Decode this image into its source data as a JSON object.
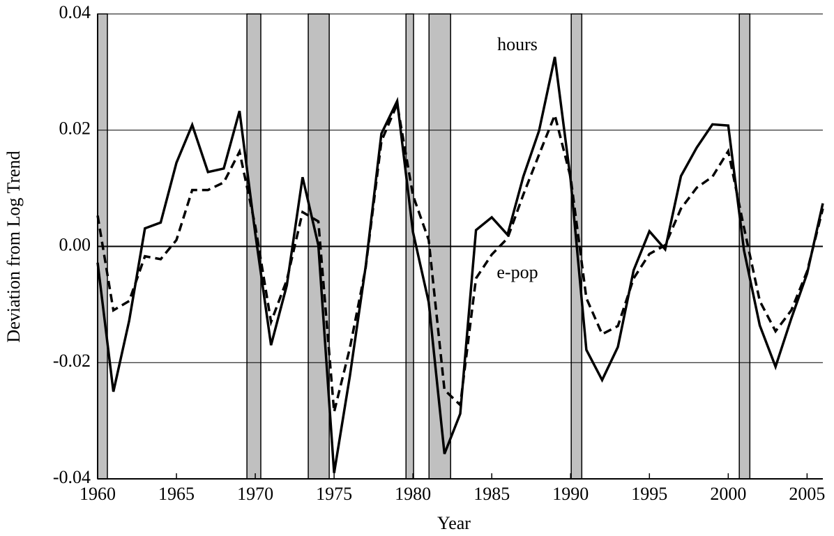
{
  "chart_data": {
    "type": "line",
    "xlabel": "Year",
    "ylabel": "Deviation from Log Trend",
    "x": [
      1960,
      1961,
      1962,
      1963,
      1964,
      1965,
      1966,
      1967,
      1968,
      1969,
      1970,
      1971,
      1972,
      1973,
      1974,
      1975,
      1976,
      1977,
      1978,
      1979,
      1980,
      1981,
      1982,
      1983,
      1984,
      1985,
      1986,
      1987,
      1988,
      1989,
      1990,
      1991,
      1992,
      1993,
      1994,
      1995,
      1996,
      1997,
      1998,
      1999,
      2000,
      2001,
      2002,
      2003,
      2004,
      2005,
      2006
    ],
    "series": [
      {
        "name": "hours",
        "color": "#000000",
        "dash": false,
        "values": [
          -0.0028,
          -0.025,
          -0.0128,
          0.0031,
          0.0041,
          0.0144,
          0.0209,
          0.0128,
          0.0134,
          0.0233,
          0.0022,
          -0.017,
          -0.0067,
          0.0119,
          0.0002,
          -0.039,
          -0.0223,
          -0.0035,
          0.0194,
          0.025,
          0.0025,
          -0.0096,
          -0.0357,
          -0.0288,
          0.0028,
          0.005,
          0.002,
          0.012,
          0.0199,
          0.0326,
          0.0115,
          -0.0178,
          -0.023,
          -0.0173,
          -0.0041,
          0.0026,
          -0.0005,
          0.0121,
          0.017,
          0.021,
          0.0208,
          -0.0007,
          -0.0136,
          -0.0207,
          -0.0124,
          -0.0047,
          0.0074
        ]
      },
      {
        "name": "e-pop",
        "color": "#000000",
        "dash": true,
        "values": [
          0.0053,
          -0.011,
          -0.0094,
          -0.0017,
          -0.0022,
          0.0011,
          0.0097,
          0.0097,
          0.011,
          0.0163,
          0.0035,
          -0.013,
          -0.0058,
          0.0059,
          0.0043,
          -0.0285,
          -0.0175,
          -0.0037,
          0.0181,
          0.0245,
          0.0088,
          0.0011,
          -0.0247,
          -0.0273,
          -0.0055,
          -0.0014,
          0.0014,
          0.0089,
          0.0158,
          0.0226,
          0.0119,
          -0.0089,
          -0.0151,
          -0.0137,
          -0.0055,
          -0.0013,
          0.0002,
          0.0065,
          0.0101,
          0.012,
          0.0164,
          0.0032,
          -0.0094,
          -0.0146,
          -0.011,
          -0.0043,
          0.0065
        ]
      }
    ],
    "recessions": {
      "color": "#c0c0c0",
      "spans": [
        [
          1960.0,
          1960.62
        ],
        [
          1969.47,
          1970.35
        ],
        [
          1973.36,
          1974.69
        ],
        [
          1979.56,
          1980.04
        ],
        [
          1981.02,
          1982.39
        ],
        [
          1990.04,
          1990.71
        ],
        [
          2000.7,
          2001.37
        ]
      ]
    },
    "xlim": [
      1960,
      2006
    ],
    "xticks": [
      1960,
      1965,
      1970,
      1975,
      1980,
      1985,
      1990,
      1995,
      2000,
      2005
    ],
    "ylim": [
      -0.04,
      0.04
    ],
    "yticks": [
      -0.04,
      -0.02,
      {
        "value": 0,
        "label": "0.00"
      },
      0.02,
      0.04
    ],
    "grid": true
  }
}
